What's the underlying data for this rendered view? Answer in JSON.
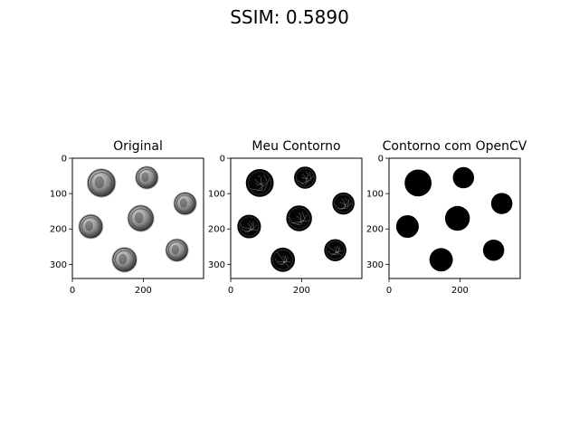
{
  "figure": {
    "suptitle": "SSIM: 0.5890"
  },
  "panels": [
    {
      "title": "Original",
      "kind": "grayscale-photo",
      "x_ticks": [
        "0",
        "200"
      ],
      "y_ticks": [
        "0",
        "100",
        "200",
        "300"
      ]
    },
    {
      "title": "Meu Contorno",
      "kind": "edge-map",
      "x_ticks": [
        "0",
        "200"
      ],
      "y_ticks": [
        "0",
        "100",
        "200",
        "300"
      ]
    },
    {
      "title": "Contorno com OpenCV",
      "kind": "filled-mask",
      "x_ticks": [
        "0",
        "200"
      ],
      "y_ticks": [
        "0",
        "100",
        "200",
        "300"
      ]
    }
  ],
  "chart_data": {
    "type": "image",
    "image_size": {
      "width": 370,
      "height": 340
    },
    "xlim": [
      0,
      370
    ],
    "ylim": [
      340,
      0
    ],
    "x_tick_values": [
      0,
      200
    ],
    "y_tick_values": [
      0,
      100,
      200,
      300
    ],
    "coins": [
      {
        "cx": 82,
        "cy": 70,
        "r": 38
      },
      {
        "cx": 210,
        "cy": 55,
        "r": 30
      },
      {
        "cx": 318,
        "cy": 128,
        "r": 30
      },
      {
        "cx": 193,
        "cy": 170,
        "r": 35
      },
      {
        "cx": 52,
        "cy": 193,
        "r": 32
      },
      {
        "cx": 295,
        "cy": 260,
        "r": 30
      },
      {
        "cx": 147,
        "cy": 287,
        "r": 33
      }
    ]
  }
}
